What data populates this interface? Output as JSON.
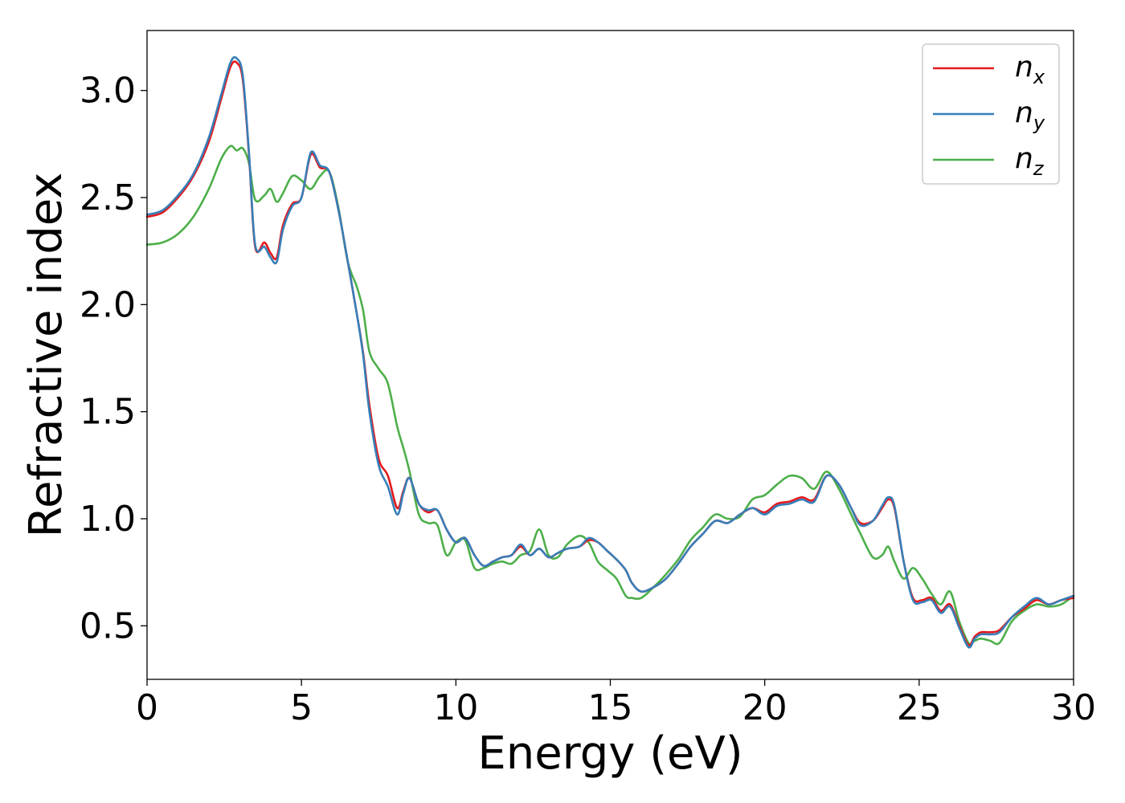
{
  "chart_data": {
    "type": "line",
    "xlabel": "Energy (eV)",
    "ylabel": "Refractive index",
    "xlim": [
      0,
      30
    ],
    "ylim": [
      0.25,
      3.28
    ],
    "xticks": [
      0,
      5,
      10,
      15,
      20,
      25,
      30
    ],
    "xtick_labels": [
      "0",
      "5",
      "10",
      "15",
      "20",
      "25",
      "30"
    ],
    "yticks": [
      0.5,
      1.0,
      1.5,
      2.0,
      2.5,
      3.0
    ],
    "ytick_labels": [
      "0.5",
      "1.0",
      "1.5",
      "2.0",
      "2.5",
      "3.0"
    ],
    "grid": false,
    "legend_position": "top-right",
    "series": [
      {
        "name": "n_x",
        "label_main": "n",
        "label_sub": "x",
        "color": "#e41a1c",
        "x": [
          0,
          0.5,
          1,
          1.5,
          2,
          2.4,
          2.7,
          2.9,
          3.1,
          3.3,
          3.5,
          3.8,
          4.0,
          4.2,
          4.4,
          4.7,
          5.0,
          5.3,
          5.6,
          5.9,
          6.2,
          6.5,
          6.8,
          7.0,
          7.2,
          7.5,
          7.8,
          8.1,
          8.3,
          8.5,
          8.8,
          9.1,
          9.4,
          9.7,
          10.0,
          10.3,
          10.6,
          10.9,
          11.2,
          11.5,
          11.8,
          12.1,
          12.4,
          12.7,
          13.0,
          13.3,
          13.6,
          14.0,
          14.3,
          14.6,
          14.9,
          15.2,
          15.5,
          15.7,
          16.0,
          16.4,
          16.8,
          17.2,
          17.6,
          18.0,
          18.4,
          18.8,
          19.2,
          19.6,
          20.0,
          20.4,
          20.8,
          21.2,
          21.6,
          22.0,
          22.4,
          22.8,
          23.1,
          23.5,
          23.8,
          24.0,
          24.2,
          24.5,
          24.8,
          25.1,
          25.4,
          25.7,
          26.0,
          26.3,
          26.6,
          26.8,
          27.0,
          27.3,
          27.6,
          28.0,
          28.4,
          28.8,
          29.2,
          29.6,
          30.0
        ],
        "y": [
          2.41,
          2.43,
          2.5,
          2.6,
          2.76,
          2.96,
          3.11,
          3.13,
          3.05,
          2.7,
          2.27,
          2.29,
          2.24,
          2.22,
          2.37,
          2.47,
          2.5,
          2.7,
          2.64,
          2.62,
          2.44,
          2.2,
          1.95,
          1.77,
          1.53,
          1.28,
          1.2,
          1.05,
          1.13,
          1.19,
          1.07,
          1.03,
          1.04,
          0.95,
          0.89,
          0.91,
          0.83,
          0.78,
          0.8,
          0.82,
          0.83,
          0.87,
          0.83,
          0.86,
          0.82,
          0.84,
          0.86,
          0.87,
          0.9,
          0.89,
          0.85,
          0.81,
          0.76,
          0.7,
          0.66,
          0.68,
          0.72,
          0.79,
          0.87,
          0.93,
          0.99,
          0.98,
          1.02,
          1.05,
          1.03,
          1.07,
          1.08,
          1.1,
          1.09,
          1.2,
          1.16,
          1.05,
          0.98,
          0.99,
          1.05,
          1.09,
          1.05,
          0.8,
          0.63,
          0.62,
          0.63,
          0.57,
          0.6,
          0.5,
          0.41,
          0.45,
          0.47,
          0.47,
          0.48,
          0.54,
          0.58,
          0.62,
          0.6,
          0.62,
          0.63
        ]
      },
      {
        "name": "n_y",
        "label_main": "n",
        "label_sub": "y",
        "color": "#377eb8",
        "x": [
          0,
          0.5,
          1,
          1.5,
          2,
          2.4,
          2.7,
          2.9,
          3.1,
          3.3,
          3.5,
          3.8,
          4.0,
          4.2,
          4.4,
          4.7,
          5.0,
          5.3,
          5.6,
          5.9,
          6.2,
          6.5,
          6.8,
          7.0,
          7.2,
          7.5,
          7.8,
          8.1,
          8.3,
          8.5,
          8.8,
          9.1,
          9.4,
          9.7,
          10.0,
          10.3,
          10.6,
          10.9,
          11.2,
          11.5,
          11.8,
          12.1,
          12.4,
          12.7,
          13.0,
          13.3,
          13.6,
          14.0,
          14.3,
          14.6,
          14.9,
          15.2,
          15.5,
          15.7,
          16.0,
          16.4,
          16.8,
          17.2,
          17.6,
          18.0,
          18.4,
          18.8,
          19.2,
          19.6,
          20.0,
          20.4,
          20.8,
          21.2,
          21.6,
          22.0,
          22.4,
          22.8,
          23.1,
          23.5,
          23.8,
          24.0,
          24.2,
          24.5,
          24.8,
          25.1,
          25.4,
          25.7,
          26.0,
          26.3,
          26.6,
          26.8,
          27.0,
          27.3,
          27.6,
          28.0,
          28.4,
          28.8,
          29.2,
          29.6,
          30.0
        ],
        "y": [
          2.42,
          2.44,
          2.51,
          2.61,
          2.78,
          2.98,
          3.13,
          3.15,
          3.07,
          2.71,
          2.28,
          2.27,
          2.22,
          2.2,
          2.35,
          2.46,
          2.5,
          2.71,
          2.65,
          2.62,
          2.44,
          2.2,
          1.95,
          1.76,
          1.5,
          1.25,
          1.15,
          1.02,
          1.12,
          1.19,
          1.07,
          1.04,
          1.04,
          0.95,
          0.89,
          0.91,
          0.83,
          0.78,
          0.8,
          0.82,
          0.83,
          0.88,
          0.83,
          0.86,
          0.82,
          0.84,
          0.86,
          0.87,
          0.91,
          0.89,
          0.85,
          0.81,
          0.76,
          0.7,
          0.66,
          0.68,
          0.72,
          0.79,
          0.87,
          0.93,
          0.99,
          0.98,
          1.02,
          1.05,
          1.02,
          1.06,
          1.07,
          1.09,
          1.08,
          1.2,
          1.16,
          1.05,
          0.97,
          0.99,
          1.06,
          1.1,
          1.06,
          0.8,
          0.62,
          0.61,
          0.62,
          0.56,
          0.59,
          0.49,
          0.4,
          0.44,
          0.46,
          0.46,
          0.47,
          0.54,
          0.59,
          0.63,
          0.6,
          0.62,
          0.64
        ]
      },
      {
        "name": "n_z",
        "label_main": "n",
        "label_sub": "z",
        "color": "#4daf4a",
        "x": [
          0,
          0.5,
          1,
          1.5,
          2,
          2.4,
          2.7,
          2.9,
          3.1,
          3.3,
          3.5,
          3.8,
          4.0,
          4.2,
          4.4,
          4.7,
          5.0,
          5.3,
          5.6,
          5.9,
          6.2,
          6.5,
          6.8,
          7.0,
          7.2,
          7.5,
          7.8,
          8.1,
          8.3,
          8.5,
          8.8,
          9.1,
          9.4,
          9.7,
          10.0,
          10.3,
          10.6,
          10.9,
          11.2,
          11.5,
          11.8,
          12.1,
          12.4,
          12.7,
          13.0,
          13.3,
          13.6,
          14.0,
          14.3,
          14.6,
          14.9,
          15.2,
          15.5,
          15.7,
          16.0,
          16.4,
          16.8,
          17.2,
          17.6,
          18.0,
          18.4,
          18.8,
          19.2,
          19.6,
          20.0,
          20.4,
          20.8,
          21.2,
          21.6,
          22.0,
          22.4,
          22.8,
          23.1,
          23.5,
          23.8,
          24.0,
          24.2,
          24.5,
          24.8,
          25.1,
          25.4,
          25.7,
          26.0,
          26.3,
          26.6,
          26.8,
          27.0,
          27.3,
          27.6,
          28.0,
          28.4,
          28.8,
          29.2,
          29.6,
          30.0
        ],
        "y": [
          2.28,
          2.29,
          2.33,
          2.41,
          2.54,
          2.68,
          2.74,
          2.72,
          2.73,
          2.66,
          2.49,
          2.51,
          2.54,
          2.48,
          2.52,
          2.6,
          2.58,
          2.54,
          2.6,
          2.62,
          2.45,
          2.2,
          2.08,
          1.97,
          1.78,
          1.7,
          1.63,
          1.43,
          1.33,
          1.22,
          1.02,
          0.98,
          0.97,
          0.83,
          0.89,
          0.9,
          0.77,
          0.77,
          0.79,
          0.8,
          0.79,
          0.83,
          0.85,
          0.95,
          0.83,
          0.82,
          0.88,
          0.92,
          0.89,
          0.8,
          0.76,
          0.72,
          0.64,
          0.63,
          0.63,
          0.68,
          0.74,
          0.81,
          0.9,
          0.96,
          1.02,
          1.0,
          1.01,
          1.09,
          1.11,
          1.16,
          1.2,
          1.19,
          1.14,
          1.22,
          1.14,
          1.02,
          0.93,
          0.82,
          0.83,
          0.87,
          0.8,
          0.72,
          0.77,
          0.72,
          0.65,
          0.6,
          0.66,
          0.52,
          0.42,
          0.43,
          0.44,
          0.43,
          0.42,
          0.52,
          0.57,
          0.6,
          0.59,
          0.6,
          0.64
        ]
      }
    ]
  }
}
